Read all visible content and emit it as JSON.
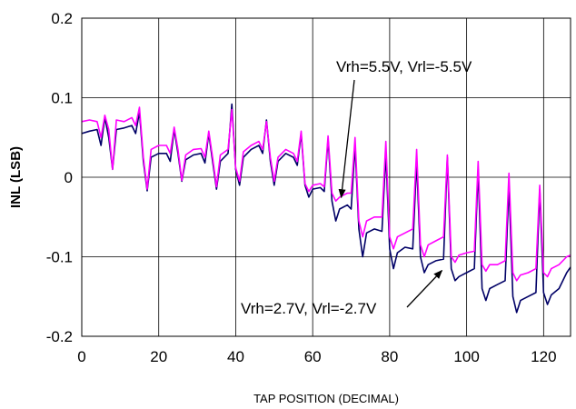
{
  "chart_data": {
    "type": "line",
    "title": "",
    "xlabel": "TAP POSITION (DECIMAL)",
    "ylabel": "INL (LSB)",
    "xlim": [
      0,
      127
    ],
    "ylim": [
      -0.2,
      0.2
    ],
    "xticks": [
      0,
      20,
      40,
      60,
      80,
      100,
      120
    ],
    "yticks": [
      0.2,
      0.1,
      0,
      -0.1,
      -0.2
    ],
    "ytick_labels": [
      "0.2",
      "0.1",
      "0",
      "-0.1",
      "-0.2"
    ],
    "grid": true,
    "colors": {
      "series_low": "#000066",
      "series_high": "#ff00ff"
    },
    "series": [
      {
        "name": "Vrh=2.7V, Vrl=-2.7V",
        "points": [
          [
            0,
            0.055
          ],
          [
            2,
            0.058
          ],
          [
            4,
            0.06
          ],
          [
            5,
            0.04
          ],
          [
            6,
            0.075
          ],
          [
            7,
            0.05
          ],
          [
            8,
            0.01
          ],
          [
            9,
            0.06
          ],
          [
            11,
            0.062
          ],
          [
            13,
            0.065
          ],
          [
            14,
            0.055
          ],
          [
            15,
            0.082
          ],
          [
            16,
            0.02
          ],
          [
            17,
            -0.017
          ],
          [
            18,
            0.025
          ],
          [
            20,
            0.03
          ],
          [
            22,
            0.03
          ],
          [
            23,
            0.02
          ],
          [
            24,
            0.06
          ],
          [
            25,
            0.03
          ],
          [
            26,
            -0.005
          ],
          [
            27,
            0.022
          ],
          [
            29,
            0.028
          ],
          [
            31,
            0.03
          ],
          [
            32,
            0.018
          ],
          [
            33,
            0.055
          ],
          [
            34,
            0.02
          ],
          [
            35,
            -0.015
          ],
          [
            36,
            0.02
          ],
          [
            38,
            0.03
          ],
          [
            39,
            0.092
          ],
          [
            40,
            0.01
          ],
          [
            41,
            -0.01
          ],
          [
            42,
            0.025
          ],
          [
            44,
            0.035
          ],
          [
            46,
            0.04
          ],
          [
            47,
            0.03
          ],
          [
            48,
            0.072
          ],
          [
            49,
            0.02
          ],
          [
            50,
            -0.01
          ],
          [
            51,
            0.02
          ],
          [
            53,
            0.03
          ],
          [
            55,
            0.025
          ],
          [
            56,
            0.015
          ],
          [
            57,
            0.055
          ],
          [
            58,
            -0.01
          ],
          [
            59,
            -0.025
          ],
          [
            60,
            -0.015
          ],
          [
            62,
            -0.013
          ],
          [
            63,
            -0.018
          ],
          [
            64,
            0.048
          ],
          [
            65,
            -0.03
          ],
          [
            66,
            -0.055
          ],
          [
            67,
            -0.04
          ],
          [
            69,
            -0.035
          ],
          [
            70,
            -0.04
          ],
          [
            71,
            0.04
          ],
          [
            72,
            -0.065
          ],
          [
            73,
            -0.1
          ],
          [
            74,
            -0.07
          ],
          [
            76,
            -0.065
          ],
          [
            78,
            -0.068
          ],
          [
            79,
            0.03
          ],
          [
            80,
            -0.09
          ],
          [
            81,
            -0.115
          ],
          [
            82,
            -0.095
          ],
          [
            84,
            -0.088
          ],
          [
            86,
            -0.09
          ],
          [
            87,
            0.02
          ],
          [
            88,
            -0.1
          ],
          [
            89,
            -0.12
          ],
          [
            90,
            -0.11
          ],
          [
            92,
            -0.105
          ],
          [
            94,
            -0.103
          ],
          [
            95,
            0.025
          ],
          [
            96,
            -0.115
          ],
          [
            97,
            -0.13
          ],
          [
            98,
            -0.125
          ],
          [
            100,
            -0.12
          ],
          [
            102,
            -0.115
          ],
          [
            103,
            0.01
          ],
          [
            104,
            -0.14
          ],
          [
            105,
            -0.155
          ],
          [
            106,
            -0.14
          ],
          [
            108,
            -0.135
          ],
          [
            110,
            -0.13
          ],
          [
            111,
            -0.01
          ],
          [
            112,
            -0.15
          ],
          [
            113,
            -0.17
          ],
          [
            114,
            -0.155
          ],
          [
            116,
            -0.15
          ],
          [
            118,
            -0.145
          ],
          [
            119,
            -0.015
          ],
          [
            120,
            -0.145
          ],
          [
            121,
            -0.16
          ],
          [
            122,
            -0.148
          ],
          [
            124,
            -0.14
          ],
          [
            126,
            -0.12
          ],
          [
            127,
            -0.113
          ]
        ]
      },
      {
        "name": "Vrh=5.5V, Vrl=-5.5V",
        "points": [
          [
            0,
            0.07
          ],
          [
            2,
            0.072
          ],
          [
            4,
            0.07
          ],
          [
            5,
            0.05
          ],
          [
            6,
            0.078
          ],
          [
            7,
            0.06
          ],
          [
            8,
            0.01
          ],
          [
            9,
            0.072
          ],
          [
            11,
            0.07
          ],
          [
            13,
            0.075
          ],
          [
            14,
            0.065
          ],
          [
            15,
            0.088
          ],
          [
            16,
            0.025
          ],
          [
            17,
            -0.015
          ],
          [
            18,
            0.035
          ],
          [
            20,
            0.04
          ],
          [
            22,
            0.04
          ],
          [
            23,
            0.03
          ],
          [
            24,
            0.063
          ],
          [
            25,
            0.035
          ],
          [
            26,
            -0.004
          ],
          [
            27,
            0.028
          ],
          [
            29,
            0.035
          ],
          [
            31,
            0.036
          ],
          [
            32,
            0.025
          ],
          [
            33,
            0.058
          ],
          [
            34,
            0.025
          ],
          [
            35,
            -0.012
          ],
          [
            36,
            0.028
          ],
          [
            38,
            0.035
          ],
          [
            39,
            0.085
          ],
          [
            40,
            0.012
          ],
          [
            41,
            -0.005
          ],
          [
            42,
            0.032
          ],
          [
            44,
            0.04
          ],
          [
            46,
            0.045
          ],
          [
            47,
            0.035
          ],
          [
            48,
            0.07
          ],
          [
            49,
            0.025
          ],
          [
            50,
            -0.005
          ],
          [
            51,
            0.025
          ],
          [
            53,
            0.035
          ],
          [
            55,
            0.03
          ],
          [
            56,
            0.02
          ],
          [
            57,
            0.058
          ],
          [
            58,
            -0.008
          ],
          [
            59,
            -0.018
          ],
          [
            60,
            -0.01
          ],
          [
            62,
            -0.008
          ],
          [
            63,
            -0.012
          ],
          [
            64,
            0.052
          ],
          [
            65,
            -0.02
          ],
          [
            66,
            -0.03
          ],
          [
            67,
            -0.025
          ],
          [
            69,
            -0.02
          ],
          [
            70,
            -0.02
          ],
          [
            71,
            0.05
          ],
          [
            72,
            -0.055
          ],
          [
            73,
            -0.075
          ],
          [
            74,
            -0.055
          ],
          [
            76,
            -0.05
          ],
          [
            78,
            -0.05
          ],
          [
            79,
            0.045
          ],
          [
            80,
            -0.075
          ],
          [
            81,
            -0.09
          ],
          [
            82,
            -0.075
          ],
          [
            84,
            -0.07
          ],
          [
            86,
            -0.065
          ],
          [
            87,
            0.035
          ],
          [
            88,
            -0.085
          ],
          [
            89,
            -0.1
          ],
          [
            90,
            -0.085
          ],
          [
            92,
            -0.08
          ],
          [
            94,
            -0.075
          ],
          [
            95,
            0.028
          ],
          [
            96,
            -0.1
          ],
          [
            97,
            -0.107
          ],
          [
            98,
            -0.098
          ],
          [
            100,
            -0.095
          ],
          [
            102,
            -0.093
          ],
          [
            103,
            0.02
          ],
          [
            104,
            -0.11
          ],
          [
            105,
            -0.118
          ],
          [
            106,
            -0.11
          ],
          [
            108,
            -0.11
          ],
          [
            110,
            -0.105
          ],
          [
            111,
            0.005
          ],
          [
            112,
            -0.12
          ],
          [
            113,
            -0.13
          ],
          [
            114,
            -0.123
          ],
          [
            116,
            -0.12
          ],
          [
            118,
            -0.115
          ],
          [
            119,
            -0.01
          ],
          [
            120,
            -0.12
          ],
          [
            121,
            -0.125
          ],
          [
            122,
            -0.115
          ],
          [
            124,
            -0.11
          ],
          [
            126,
            -0.1
          ],
          [
            127,
            -0.098
          ]
        ]
      }
    ],
    "annotations": [
      {
        "text": "Vrh=5.5V, Vrl=-5.5V",
        "target": [
          66,
          -0.03
        ]
      },
      {
        "text": "Vrh=2.7V, Vrl=-2.7V",
        "target": [
          95,
          -0.115
        ]
      }
    ]
  }
}
